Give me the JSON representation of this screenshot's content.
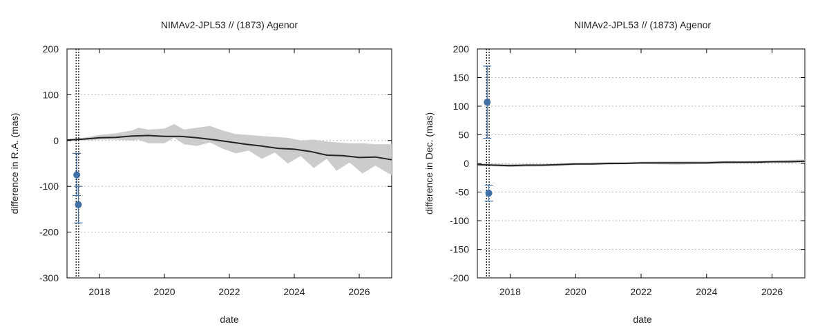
{
  "chart_data": [
    {
      "type": "line",
      "title": "NIMAv2-JPL53 // (1873) Agenor",
      "xlabel": "date",
      "ylabel": "difference in R.A. (mas)",
      "xlim": [
        2017.0,
        2027.0
      ],
      "ylim": [
        -300,
        200
      ],
      "xticks": [
        2018,
        2020,
        2022,
        2024,
        2026
      ],
      "yticks": [
        -300,
        -200,
        -100,
        0,
        100,
        200
      ],
      "grid": true,
      "series": [
        {
          "kind": "line",
          "x": [
            2017.0,
            2017.5,
            2018.0,
            2018.5,
            2019.0,
            2019.5,
            2020.0,
            2020.5,
            2021.0,
            2021.5,
            2022.0,
            2022.5,
            2023.0,
            2023.5,
            2024.0,
            2024.5,
            2025.0,
            2025.5,
            2026.0,
            2026.5,
            2027.0
          ],
          "values": [
            1,
            3,
            6,
            7,
            10,
            11,
            9,
            9,
            6,
            2,
            -3,
            -8,
            -12,
            -17,
            -19,
            -24,
            -32,
            -33,
            -37,
            -36,
            -42
          ]
        },
        {
          "kind": "band",
          "x": [
            2017.0,
            2017.5,
            2018.0,
            2018.5,
            2019.0,
            2019.2,
            2019.5,
            2020.0,
            2020.3,
            2020.6,
            2021.0,
            2021.4,
            2021.8,
            2022.2,
            2022.6,
            2023.0,
            2023.4,
            2023.8,
            2024.2,
            2024.6,
            2025.0,
            2025.3,
            2025.7,
            2026.1,
            2026.5,
            2027.0
          ],
          "upper": [
            3,
            6,
            12,
            16,
            22,
            28,
            24,
            26,
            36,
            24,
            28,
            32,
            22,
            14,
            12,
            10,
            8,
            6,
            0,
            2,
            -2,
            -4,
            -6,
            -6,
            -8,
            -8
          ],
          "lower": [
            -1,
            0,
            2,
            2,
            0,
            2,
            -6,
            -6,
            6,
            -8,
            -12,
            -4,
            -18,
            -28,
            -22,
            -40,
            -26,
            -50,
            -34,
            -60,
            -40,
            -66,
            -48,
            -72,
            -55,
            -76
          ]
        },
        {
          "kind": "points",
          "x": [
            2017.3,
            2017.35
          ],
          "values": [
            -75,
            -140
          ],
          "err_upper": [
            -28,
            -100
          ],
          "err_lower": [
            -120,
            -180
          ]
        }
      ],
      "vlines": [
        2017.28,
        2017.36
      ]
    },
    {
      "type": "line",
      "title": "NIMAv2-JPL53 // (1873) Agenor",
      "xlabel": "date",
      "ylabel": "difference in Dec. (mas)",
      "xlim": [
        2017.0,
        2027.0
      ],
      "ylim": [
        -200,
        200
      ],
      "xticks": [
        2018,
        2020,
        2022,
        2024,
        2026
      ],
      "yticks": [
        -200,
        -150,
        -100,
        -50,
        0,
        50,
        100,
        150,
        200
      ],
      "grid": true,
      "series": [
        {
          "kind": "line",
          "x": [
            2017.0,
            2017.5,
            2018.0,
            2018.5,
            2019.0,
            2019.5,
            2020.0,
            2020.5,
            2021.0,
            2021.5,
            2022.0,
            2022.5,
            2023.0,
            2023.5,
            2024.0,
            2024.5,
            2025.0,
            2025.5,
            2026.0,
            2026.5,
            2027.0
          ],
          "values": [
            -2,
            -3,
            -4,
            -3,
            -3,
            -2,
            -1,
            -1,
            0,
            0,
            1,
            1,
            1,
            1,
            1,
            2,
            2,
            2,
            3,
            3,
            4
          ]
        },
        {
          "kind": "band",
          "x": [
            2017.0,
            2018.0,
            2019.0,
            2020.0,
            2021.0,
            2022.0,
            2023.0,
            2024.0,
            2025.0,
            2026.0,
            2027.0
          ],
          "upper": [
            0,
            -1,
            -1,
            1,
            2,
            3,
            4,
            4,
            4,
            5,
            7
          ],
          "lower": [
            -4,
            -6,
            -5,
            -3,
            -2,
            -1,
            -2,
            -1,
            0,
            1,
            1
          ]
        },
        {
          "kind": "points",
          "x": [
            2017.3,
            2017.35
          ],
          "values": [
            107,
            -52
          ],
          "err_upper": [
            170,
            -38
          ],
          "err_lower": [
            44,
            -66
          ]
        }
      ],
      "vlines": [
        2017.28,
        2017.36
      ]
    }
  ]
}
